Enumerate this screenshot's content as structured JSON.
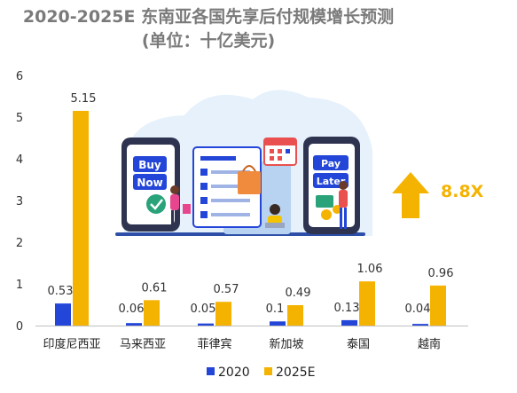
{
  "title_line1": "2020-2025E 东南亚各国先享后付规模增长预测",
  "title_line2": "(单位：十亿美元)",
  "illustration": {
    "buy_now_words": [
      "Buy",
      "Now"
    ],
    "pay_later_words": [
      "Pay",
      "Later"
    ]
  },
  "callout": "8.8X",
  "colors": {
    "series_2020": "#2346d9",
    "series_2025E": "#f5b301",
    "arrow": "#f5b301",
    "title": "#7a7a7a"
  },
  "chart_data": {
    "type": "bar",
    "categories": [
      "印度尼西亚",
      "马来西亚",
      "菲律宾",
      "新加坡",
      "泰国",
      "越南"
    ],
    "series": [
      {
        "name": "2020",
        "values": [
          0.53,
          0.06,
          0.05,
          0.1,
          0.13,
          0.04
        ],
        "labels": [
          "0.53",
          "0.06",
          "0.05",
          "0.1",
          "0.13",
          "0.04"
        ]
      },
      {
        "name": "2025E",
        "values": [
          5.15,
          0.61,
          0.57,
          0.49,
          1.06,
          0.96
        ],
        "labels": [
          "5.15",
          "0.61",
          "0.57",
          "0.49",
          "1.06",
          "0.96"
        ]
      }
    ],
    "yticks": [
      "0",
      "1",
      "2",
      "3",
      "4",
      "5",
      "6"
    ],
    "ylim": [
      0,
      6
    ],
    "grid": false,
    "legend": "bottom"
  }
}
